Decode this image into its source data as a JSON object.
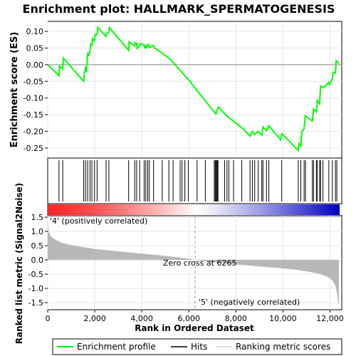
{
  "chart_data": {
    "type": "line",
    "title": "Enrichment plot: HALLMARK_SPERMATOGENESIS",
    "xlabel": "Rank in Ordered Dataset",
    "xlim": [
      0,
      12500
    ],
    "x_ticks": [
      0,
      2000,
      4000,
      6000,
      8000,
      10000,
      12000
    ],
    "x_tick_labels": [
      "0",
      "2,000",
      "4,000",
      "6,000",
      "8,000",
      "10,000",
      "12,000"
    ],
    "es_panel": {
      "ylabel": "Enrichment score (ES)",
      "ylim": [
        -0.28,
        0.13
      ],
      "y_ticks": [
        -0.25,
        -0.2,
        -0.15,
        -0.1,
        -0.05,
        0.0,
        0.05,
        0.1
      ],
      "y_tick_labels": [
        "-0.25",
        "-0.20",
        "-0.15",
        "-0.10",
        "-0.05",
        "0.00",
        "0.05",
        "0.10"
      ],
      "series": [
        {
          "name": "Enrichment profile",
          "color": "#00ff00",
          "x": [
            0,
            480,
            500,
            640,
            660,
            1530,
            1560,
            1610,
            1640,
            1700,
            1730,
            1800,
            1830,
            1880,
            1910,
            1990,
            2020,
            2100,
            2130,
            2480,
            2500,
            2600,
            2620,
            3440,
            3460,
            3700,
            3720,
            3780,
            3800,
            3910,
            3930,
            4100,
            4120,
            4170,
            4190,
            4250,
            4270,
            4320,
            4340,
            4500,
            4520,
            5200,
            5600,
            6000,
            6400,
            6800,
            7150,
            7250,
            7600,
            7850,
            8300,
            8600,
            8700,
            8800,
            8950,
            9100,
            9150,
            9300,
            9400,
            9900,
            9950,
            10650,
            10680,
            10760,
            10800,
            10900,
            10950,
            11250,
            11300,
            11420,
            11460,
            11560,
            11600,
            11700,
            11740,
            11950,
            11990,
            12100,
            12130,
            12230,
            12260,
            12380
          ],
          "y": [
            0.0,
            -0.033,
            -0.003,
            -0.013,
            0.02,
            -0.05,
            -0.026,
            -0.006,
            -0.022,
            0.036,
            0.026,
            0.043,
            0.062,
            0.059,
            0.078,
            0.072,
            0.091,
            0.09,
            0.112,
            0.085,
            0.093,
            0.097,
            0.111,
            0.043,
            0.069,
            0.056,
            0.066,
            0.064,
            0.049,
            0.056,
            0.064,
            0.058,
            0.049,
            0.059,
            0.051,
            0.057,
            0.061,
            0.056,
            0.052,
            0.058,
            0.052,
            0.017,
            -0.015,
            -0.046,
            -0.082,
            -0.117,
            -0.148,
            -0.127,
            -0.152,
            -0.167,
            -0.192,
            -0.214,
            -0.2,
            -0.209,
            -0.2,
            -0.211,
            -0.187,
            -0.198,
            -0.183,
            -0.225,
            -0.207,
            -0.257,
            -0.236,
            -0.244,
            -0.201,
            -0.192,
            -0.153,
            -0.169,
            -0.133,
            -0.142,
            -0.107,
            -0.117,
            -0.064,
            -0.069,
            -0.067,
            -0.053,
            -0.059,
            -0.041,
            -0.023,
            -0.025,
            0.012,
            0.003
          ]
        }
      ]
    },
    "hits": {
      "name": "Hits",
      "color": "#000000",
      "positions": [
        480,
        640,
        1530,
        1610,
        1700,
        1800,
        1880,
        1990,
        2100,
        2480,
        2600,
        3440,
        3700,
        3780,
        3910,
        4100,
        4170,
        4250,
        4320,
        4500,
        4870,
        5150,
        5330,
        5630,
        5710,
        5830,
        5980,
        6350,
        6700,
        7080,
        7120,
        7150,
        7180,
        7210,
        7240,
        7520,
        7620,
        7700,
        7900,
        8250,
        8600,
        8700,
        8800,
        8950,
        9100,
        9150,
        9300,
        9400,
        9950,
        10650,
        10760,
        10900,
        10960,
        11250,
        11300,
        11420,
        11460,
        11560,
        11600,
        11700,
        11950,
        12100,
        12230,
        12290
      ]
    },
    "rank_metric_panel": {
      "ylabel": "Ranked list metric (Signal2Noise)",
      "ylim": [
        -1.75,
        1.55
      ],
      "y_ticks": [
        -1.5,
        -1.0,
        -0.5,
        0.0,
        0.5,
        1.0,
        1.5
      ],
      "y_tick_labels": [
        "-1.5",
        "-1.0",
        "-0.5",
        "0.0",
        "0.5",
        "1.0",
        "1.5"
      ],
      "series_name": "Ranking metric scores",
      "series_color": "#b0b0b0",
      "x": [
        0,
        20,
        60,
        150,
        300,
        600,
        1000,
        1500,
        2000,
        3000,
        4000,
        5000,
        6000,
        6265,
        7000,
        8000,
        9000,
        10000,
        10500,
        11000,
        11500,
        11800,
        12000,
        12150,
        12250,
        12300,
        12340,
        12380
      ],
      "y": [
        1.5,
        1.1,
        0.95,
        0.82,
        0.72,
        0.6,
        0.52,
        0.45,
        0.38,
        0.3,
        0.22,
        0.14,
        0.04,
        0.0,
        -0.08,
        -0.16,
        -0.23,
        -0.3,
        -0.34,
        -0.4,
        -0.48,
        -0.56,
        -0.64,
        -0.78,
        -0.95,
        -1.2,
        -1.45,
        -1.6
      ],
      "zero_cross_label": "Zero cross at 6265",
      "zero_cross": 6265,
      "positive_label": "'4' (positively correlated)",
      "negative_label": "'5' (negatively correlated)"
    },
    "legend": {
      "placement": "bottom",
      "entries": [
        "Enrichment profile",
        "Hits",
        "Ranking metric scores"
      ]
    }
  }
}
